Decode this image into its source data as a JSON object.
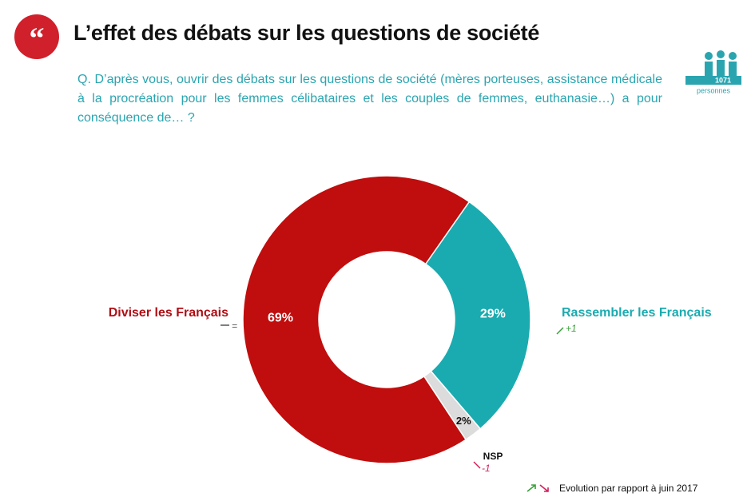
{
  "chart_data": {
    "type": "donut",
    "title": "L’effet des débats sur les questions de société",
    "subtitle": "Q. D’après vous, ouvrir des débats sur les questions de société (mères porteuses, assistance médicale à la procréation pour les femmes célibataires et les couples de femmes, euthanasie…) a pour conséquence de… ?",
    "sample": {
      "count": 1071,
      "unit": "personnes"
    },
    "categories": [
      "Rassembler les Français",
      "NSP",
      "Diviser les Français"
    ],
    "values": [
      29,
      2,
      69
    ],
    "value_labels": [
      "29%",
      "2%",
      "69%"
    ],
    "colors": [
      "#1aabb0",
      "#dcdcdc",
      "#c00d0d"
    ],
    "changes": [
      "+1",
      "-1",
      "="
    ],
    "note": "Evolution par rapport à juin 2017"
  }
}
